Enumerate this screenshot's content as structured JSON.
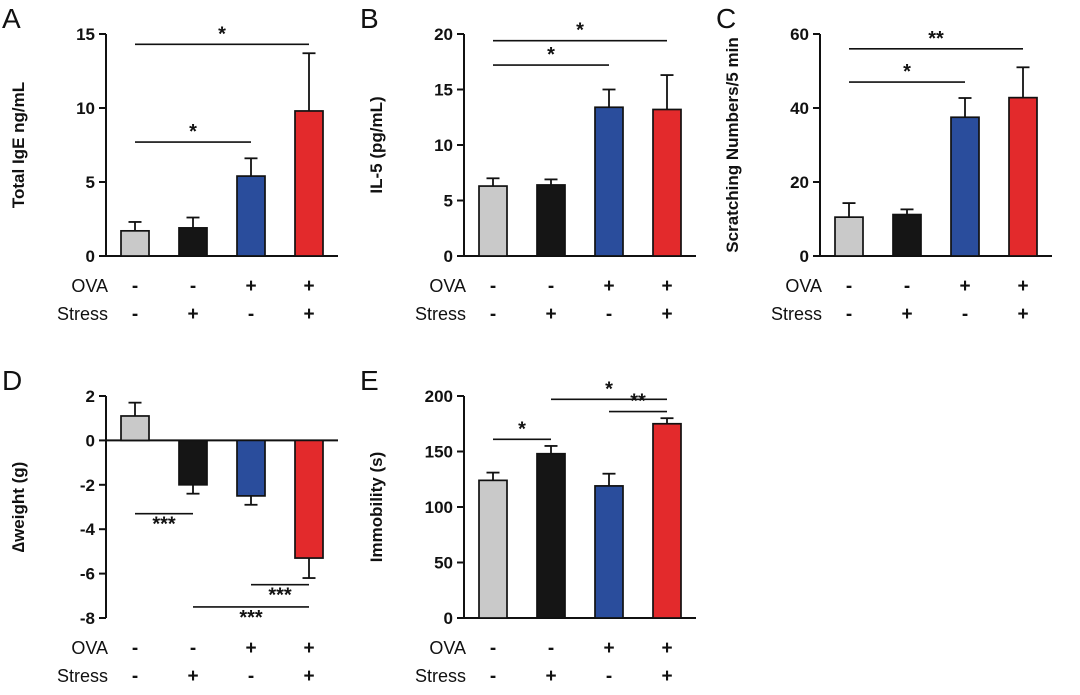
{
  "colors": {
    "gray": "#c9c9c9",
    "black": "#151515",
    "blue": "#2a4d9c",
    "red": "#e32a2c"
  },
  "chart_data": [
    {
      "type": "bar",
      "panel_label": "A",
      "ylabel": "Total IgE ng/mL",
      "ylim": [
        0,
        15
      ],
      "yticks": [
        0,
        5,
        10,
        15
      ],
      "values": [
        1.7,
        1.9,
        5.4,
        9.8
      ],
      "errors": [
        0.6,
        0.7,
        1.2,
        3.9
      ],
      "bar_colors": [
        "gray",
        "black",
        "blue",
        "red"
      ],
      "significance": [
        {
          "from": 0,
          "to": 2,
          "y": 7.7,
          "label": "*"
        },
        {
          "from": 0,
          "to": 3,
          "y": 14.3,
          "label": "*"
        }
      ],
      "categories_rows": [
        {
          "label": "OVA",
          "values": [
            "-",
            "-",
            "+",
            "+"
          ]
        },
        {
          "label": "Stress",
          "values": [
            "-",
            "+",
            "-",
            "+"
          ]
        }
      ]
    },
    {
      "type": "bar",
      "panel_label": "B",
      "ylabel": "IL-5 (pg/mL)",
      "ylim": [
        0,
        20
      ],
      "yticks": [
        0,
        5,
        10,
        15,
        20
      ],
      "values": [
        6.3,
        6.4,
        13.4,
        13.2
      ],
      "errors": [
        0.7,
        0.5,
        1.6,
        3.1
      ],
      "bar_colors": [
        "gray",
        "black",
        "blue",
        "red"
      ],
      "significance": [
        {
          "from": 0,
          "to": 2,
          "y": 17.2,
          "label": "*"
        },
        {
          "from": 0,
          "to": 3,
          "y": 19.4,
          "label": "*"
        }
      ],
      "categories_rows": [
        {
          "label": "OVA",
          "values": [
            "-",
            "-",
            "+",
            "+"
          ]
        },
        {
          "label": "Stress",
          "values": [
            "-",
            "+",
            "-",
            "+"
          ]
        }
      ]
    },
    {
      "type": "bar",
      "panel_label": "C",
      "ylabel": "Scratching Numbers/5 min",
      "ylim": [
        0,
        60
      ],
      "yticks": [
        0,
        20,
        40,
        60
      ],
      "values": [
        10.5,
        11.2,
        37.5,
        42.8
      ],
      "errors": [
        3.8,
        1.4,
        5.2,
        8.2
      ],
      "bar_colors": [
        "gray",
        "black",
        "blue",
        "red"
      ],
      "significance": [
        {
          "from": 0,
          "to": 2,
          "y": 47,
          "label": "*"
        },
        {
          "from": 0,
          "to": 3,
          "y": 56,
          "label": "**"
        }
      ],
      "categories_rows": [
        {
          "label": "OVA",
          "values": [
            "-",
            "-",
            "+",
            "+"
          ]
        },
        {
          "label": "Stress",
          "values": [
            "-",
            "+",
            "-",
            "+"
          ]
        }
      ]
    },
    {
      "type": "bar",
      "panel_label": "D",
      "ylabel": "∆weight (g)",
      "ylim": [
        -8,
        2
      ],
      "yticks": [
        -8,
        -6,
        -4,
        -2,
        0,
        2
      ],
      "values": [
        1.1,
        -2.0,
        -2.5,
        -5.3
      ],
      "errors": [
        0.6,
        0.4,
        0.4,
        0.9
      ],
      "bar_colors": [
        "gray",
        "black",
        "blue",
        "red"
      ],
      "significance": [
        {
          "from": 0,
          "to": 1,
          "y": -3.3,
          "label": "***",
          "below": true
        },
        {
          "from": 2,
          "to": 3,
          "y": -6.5,
          "label": "***",
          "below": true
        },
        {
          "from": 1,
          "to": 3,
          "y": -7.5,
          "label": "***",
          "below": true
        }
      ],
      "categories_rows": [
        {
          "label": "OVA",
          "values": [
            "-",
            "-",
            "+",
            "+"
          ]
        },
        {
          "label": "Stress",
          "values": [
            "-",
            "+",
            "-",
            "+"
          ]
        }
      ]
    },
    {
      "type": "bar",
      "panel_label": "E",
      "ylabel": "Immobility (s)",
      "ylim": [
        0,
        200
      ],
      "yticks": [
        0,
        50,
        100,
        150,
        200
      ],
      "values": [
        124,
        148,
        119,
        175
      ],
      "errors": [
        7,
        7,
        11,
        5
      ],
      "bar_colors": [
        "gray",
        "black",
        "blue",
        "red"
      ],
      "significance": [
        {
          "from": 0,
          "to": 1,
          "y": 161,
          "label": "*"
        },
        {
          "from": 2,
          "to": 3,
          "y": 186,
          "label": "**"
        },
        {
          "from": 1,
          "to": 3,
          "y": 197,
          "label": "*"
        }
      ],
      "categories_rows": [
        {
          "label": "OVA",
          "values": [
            "-",
            "-",
            "+",
            "+"
          ]
        },
        {
          "label": "Stress",
          "values": [
            "-",
            "+",
            "-",
            "+"
          ]
        }
      ]
    }
  ]
}
